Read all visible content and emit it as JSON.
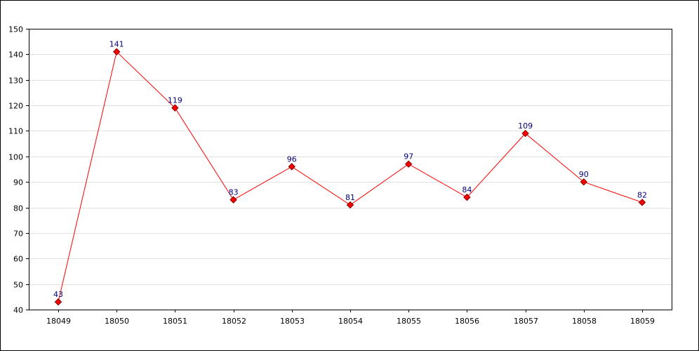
{
  "chart_data": {
    "type": "line",
    "title": "",
    "xlabel": "",
    "ylabel": "",
    "categories": [
      "18049",
      "18050",
      "18051",
      "18052",
      "18053",
      "18054",
      "18055",
      "18056",
      "18057",
      "18058",
      "18059"
    ],
    "series": [
      {
        "values": [
          43,
          141,
          119,
          83,
          96,
          81,
          97,
          84,
          109,
          90,
          82
        ],
        "line_color": "#ff0000",
        "marker_color": "#ff0000",
        "marker_edge_color": "#800000",
        "marker": "diamond"
      }
    ],
    "ylim": [
      40,
      150
    ],
    "yticks": [
      40,
      50,
      60,
      70,
      80,
      90,
      100,
      110,
      120,
      130,
      140,
      150
    ],
    "grid": true,
    "grid_color": "#e0e0e0",
    "data_labels": true,
    "data_label_color": "#000080",
    "legend": "none"
  }
}
